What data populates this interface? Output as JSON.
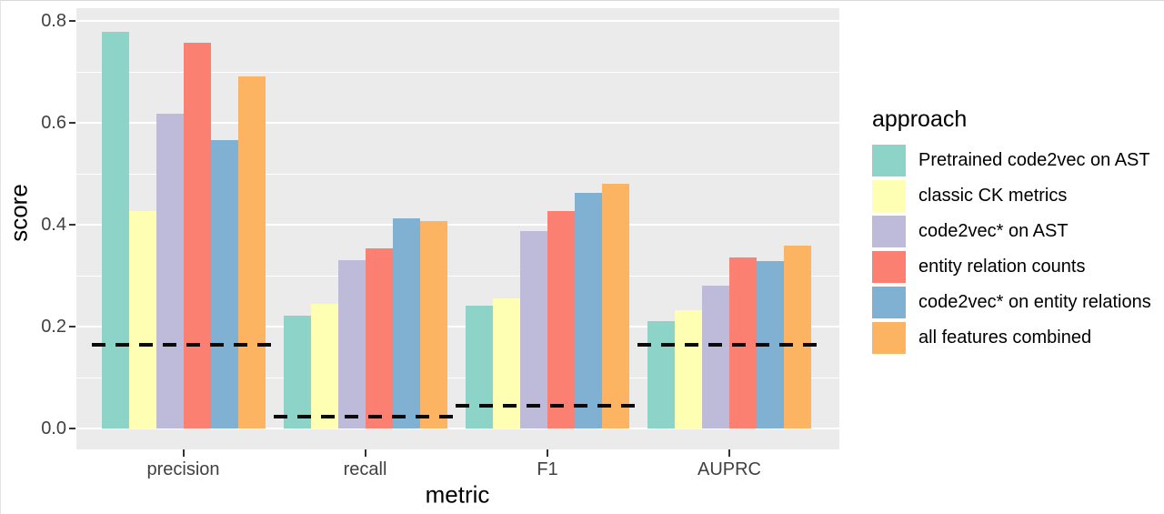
{
  "chart_data": {
    "type": "bar",
    "grouped": true,
    "title": "",
    "xlabel": "metric",
    "ylabel": "score",
    "categories": [
      "precision",
      "recall",
      "F1",
      "AUPRC"
    ],
    "series": [
      {
        "name": "Pretrained code2vec on AST",
        "color": "#8DD3C7",
        "values": [
          0.778,
          0.221,
          0.241,
          0.21
        ]
      },
      {
        "name": "classic CK metrics",
        "color": "#FFFFB3",
        "values": [
          0.427,
          0.244,
          0.255,
          0.232
        ]
      },
      {
        "name": "code2vec* on AST",
        "color": "#BEBADA",
        "values": [
          0.618,
          0.33,
          0.388,
          0.281
        ]
      },
      {
        "name": "entity relation counts",
        "color": "#FB8072",
        "values": [
          0.757,
          0.353,
          0.426,
          0.336
        ]
      },
      {
        "name": "code2vec* on entity relations",
        "color": "#80B1D3",
        "values": [
          0.566,
          0.412,
          0.462,
          0.329
        ]
      },
      {
        "name": "all features combined",
        "color": "#FDB462",
        "values": [
          0.691,
          0.407,
          0.48,
          0.359
        ]
      }
    ],
    "baselines": {
      "description": "dashed horizontal baseline per metric group",
      "values": [
        0.165,
        0.024,
        0.044,
        0.165
      ],
      "color": "#0a0a0a",
      "style": "dashed"
    },
    "ylim": [
      0.0,
      0.8
    ],
    "yticks": [
      {
        "value": 0.0,
        "label": "0.0"
      },
      {
        "value": 0.2,
        "label": "0.2"
      },
      {
        "value": 0.4,
        "label": "0.4"
      },
      {
        "value": 0.6,
        "label": "0.6"
      },
      {
        "value": 0.8,
        "label": "0.8"
      }
    ],
    "yticks_minor": [
      0.1,
      0.3,
      0.5,
      0.7
    ],
    "legend": {
      "title": "approach",
      "position": "right"
    },
    "panel_bg": "#EBEBEB",
    "gridline_color": "#FFFFFF",
    "tick_label_color": "#404040",
    "grid": true
  }
}
